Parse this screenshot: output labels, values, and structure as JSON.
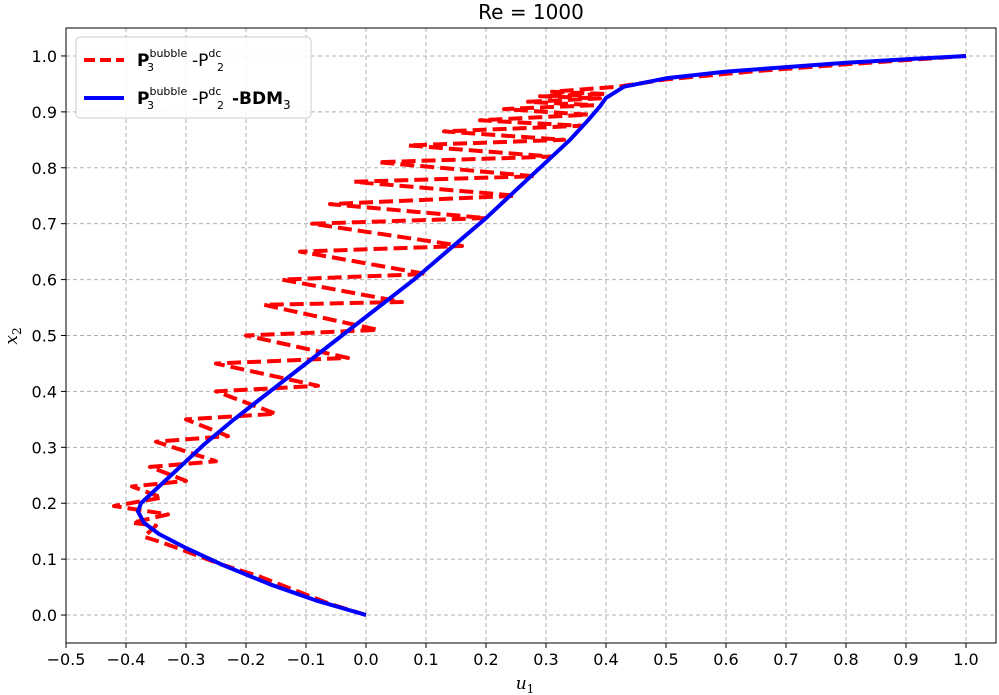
{
  "chart_data": {
    "type": "line",
    "title": "Re = 1000",
    "xlabel": "u",
    "xlabel_sub": "1",
    "ylabel": "x",
    "ylabel_sub": "2",
    "xlim": [
      -0.5,
      1.05
    ],
    "ylim": [
      -0.05,
      1.05
    ],
    "xticks": [
      -0.5,
      -0.4,
      -0.3,
      -0.2,
      -0.1,
      0.0,
      0.1,
      0.2,
      0.3,
      0.4,
      0.5,
      0.6,
      0.7,
      0.8,
      0.9,
      1.0
    ],
    "xtick_labels": [
      "−0.5",
      "−0.4",
      "−0.3",
      "−0.2",
      "−0.1",
      "0.0",
      "0.1",
      "0.2",
      "0.3",
      "0.4",
      "0.5",
      "0.6",
      "0.7",
      "0.8",
      "0.9",
      "1.0"
    ],
    "yticks": [
      0.0,
      0.1,
      0.2,
      0.3,
      0.4,
      0.5,
      0.6,
      0.7,
      0.8,
      0.9,
      1.0
    ],
    "ytick_labels": [
      "0.0",
      "0.1",
      "0.2",
      "0.3",
      "0.4",
      "0.5",
      "0.6",
      "0.7",
      "0.8",
      "0.9",
      "1.0"
    ],
    "grid": true,
    "legend_position": "top-left",
    "legend": [
      {
        "base": "P",
        "sub1": "3",
        "sup1": "bubble",
        "mid": "-P",
        "sub2": "2",
        "sup2": "dc",
        "tail": "",
        "tail_sub": ""
      },
      {
        "base": "P",
        "sub1": "3",
        "sup1": "bubble",
        "mid": "-P",
        "sub2": "2",
        "sup2": "dc",
        "tail": "-BDM",
        "tail_sub": "3"
      }
    ],
    "series": [
      {
        "color": "#ff0000",
        "dash": "dashed",
        "x": [
          0.0,
          -0.06,
          -0.12,
          -0.18,
          -0.24,
          -0.29,
          -0.34,
          -0.37,
          -0.35,
          -0.39,
          -0.33,
          -0.42,
          -0.34,
          -0.39,
          -0.3,
          -0.36,
          -0.25,
          -0.35,
          -0.23,
          -0.3,
          -0.15,
          -0.25,
          -0.08,
          -0.25,
          -0.03,
          -0.2,
          0.02,
          -0.17,
          0.06,
          -0.14,
          0.1,
          -0.11,
          0.16,
          -0.09,
          0.2,
          -0.06,
          0.25,
          -0.02,
          0.28,
          0.02,
          0.31,
          0.07,
          0.33,
          0.13,
          0.36,
          0.19,
          0.37,
          0.23,
          0.38,
          0.27,
          0.39,
          0.29,
          0.4,
          0.31,
          0.42,
          0.5,
          0.65,
          0.8,
          1.0
        ],
        "y": [
          0.0,
          0.02,
          0.045,
          0.07,
          0.09,
          0.11,
          0.13,
          0.14,
          0.16,
          0.165,
          0.18,
          0.195,
          0.21,
          0.23,
          0.24,
          0.265,
          0.275,
          0.31,
          0.32,
          0.35,
          0.36,
          0.4,
          0.41,
          0.45,
          0.46,
          0.5,
          0.51,
          0.555,
          0.56,
          0.6,
          0.61,
          0.65,
          0.66,
          0.7,
          0.71,
          0.735,
          0.75,
          0.775,
          0.785,
          0.81,
          0.82,
          0.84,
          0.85,
          0.865,
          0.875,
          0.885,
          0.895,
          0.905,
          0.912,
          0.918,
          0.924,
          0.928,
          0.932,
          0.936,
          0.945,
          0.958,
          0.973,
          0.985,
          1.0
        ]
      },
      {
        "color": "#0000ff",
        "dash": "solid",
        "x": [
          0.0,
          -0.08,
          -0.16,
          -0.24,
          -0.3,
          -0.345,
          -0.37,
          -0.38,
          -0.375,
          -0.355,
          -0.33,
          -0.3,
          -0.27,
          -0.22,
          -0.16,
          -0.1,
          -0.04,
          0.02,
          0.08,
          0.14,
          0.2,
          0.25,
          0.3,
          0.34,
          0.37,
          0.39,
          0.4,
          0.43,
          0.5,
          0.6,
          0.7,
          0.8,
          0.9,
          1.0
        ],
        "y": [
          0.0,
          0.025,
          0.055,
          0.09,
          0.12,
          0.145,
          0.165,
          0.185,
          0.2,
          0.22,
          0.245,
          0.275,
          0.305,
          0.35,
          0.4,
          0.45,
          0.5,
          0.55,
          0.6,
          0.655,
          0.71,
          0.76,
          0.81,
          0.85,
          0.885,
          0.91,
          0.925,
          0.945,
          0.96,
          0.972,
          0.98,
          0.988,
          0.994,
          1.0
        ]
      }
    ]
  }
}
